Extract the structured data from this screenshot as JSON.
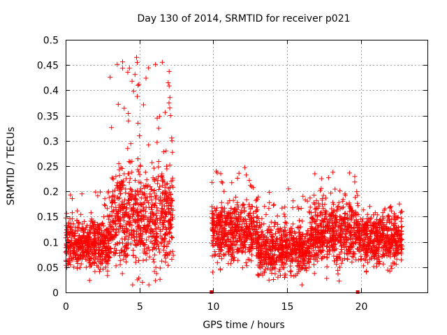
{
  "chart_data": {
    "type": "scatter",
    "title": "Day 130 of 2014, SRMTID for receiver p021",
    "xlabel": "GPS time / hours",
    "ylabel": "SRMTID / TECUs",
    "xlim": [
      0,
      24.5
    ],
    "ylim": [
      0,
      0.5
    ],
    "x_ticks": [
      0,
      5,
      10,
      15,
      20
    ],
    "x_tick_labels": [
      "0",
      "5",
      "10",
      "15",
      "20"
    ],
    "y_ticks": [
      0,
      0.05,
      0.1,
      0.15,
      0.2,
      0.25,
      0.3,
      0.35,
      0.4,
      0.45,
      0.5
    ],
    "y_tick_labels": [
      "0",
      "0.05",
      "0.1",
      "0.15",
      "0.2",
      "0.25",
      "0.3",
      "0.35",
      "0.4",
      "0.45",
      "0.5"
    ],
    "grid": true,
    "marker": "+",
    "color": "#ff0000",
    "markers_on_axis": [
      9.9,
      19.8
    ],
    "series": [
      {
        "name": "SRMTID",
        "segments": [
          {
            "x_start": 0.0,
            "x_end": 3.0,
            "level": 0.095,
            "spread": 0.03,
            "outlier_max": 0.2
          },
          {
            "x_start": 3.0,
            "x_end": 7.3,
            "level": 0.15,
            "spread": 0.06,
            "outlier_max": 0.465
          },
          {
            "x_start": 9.9,
            "x_end": 13.0,
            "level": 0.12,
            "spread": 0.035,
            "outlier_max": 0.25
          },
          {
            "x_start": 13.0,
            "x_end": 16.5,
            "level": 0.085,
            "spread": 0.03,
            "outlier_max": 0.2
          },
          {
            "x_start": 16.5,
            "x_end": 19.8,
            "level": 0.12,
            "spread": 0.04,
            "outlier_max": 0.24
          },
          {
            "x_start": 19.8,
            "x_end": 22.8,
            "level": 0.105,
            "spread": 0.03,
            "outlier_max": 0.17
          }
        ],
        "highlights": [
          [
            4.5,
            0.418
          ],
          [
            4.8,
            0.465
          ],
          [
            4.85,
            0.455
          ],
          [
            4.9,
            0.41
          ],
          [
            4.85,
            0.388
          ],
          [
            4.6,
            0.398
          ],
          [
            6.95,
            0.415
          ],
          [
            7.0,
            0.375
          ],
          [
            7.05,
            0.365
          ],
          [
            7.1,
            0.35
          ],
          [
            6.2,
            0.345
          ],
          [
            6.3,
            0.325
          ],
          [
            4.2,
            0.285
          ],
          [
            4.9,
            0.335
          ],
          [
            5.0,
            0.31
          ],
          [
            7.2,
            0.3
          ],
          [
            6.8,
            0.28
          ],
          [
            3.6,
            0.255
          ],
          [
            9.95,
            0.04
          ],
          [
            10.2,
            0.24
          ],
          [
            10.5,
            0.235
          ],
          [
            18.1,
            0.238
          ],
          [
            15.1,
            0.205
          ],
          [
            16.0,
            0.015
          ],
          [
            5.2,
            0.02
          ],
          [
            2.9,
            0.2
          ],
          [
            1.1,
            0.195
          ],
          [
            20.7,
            0.07
          ],
          [
            22.6,
            0.175
          ]
        ]
      }
    ]
  }
}
